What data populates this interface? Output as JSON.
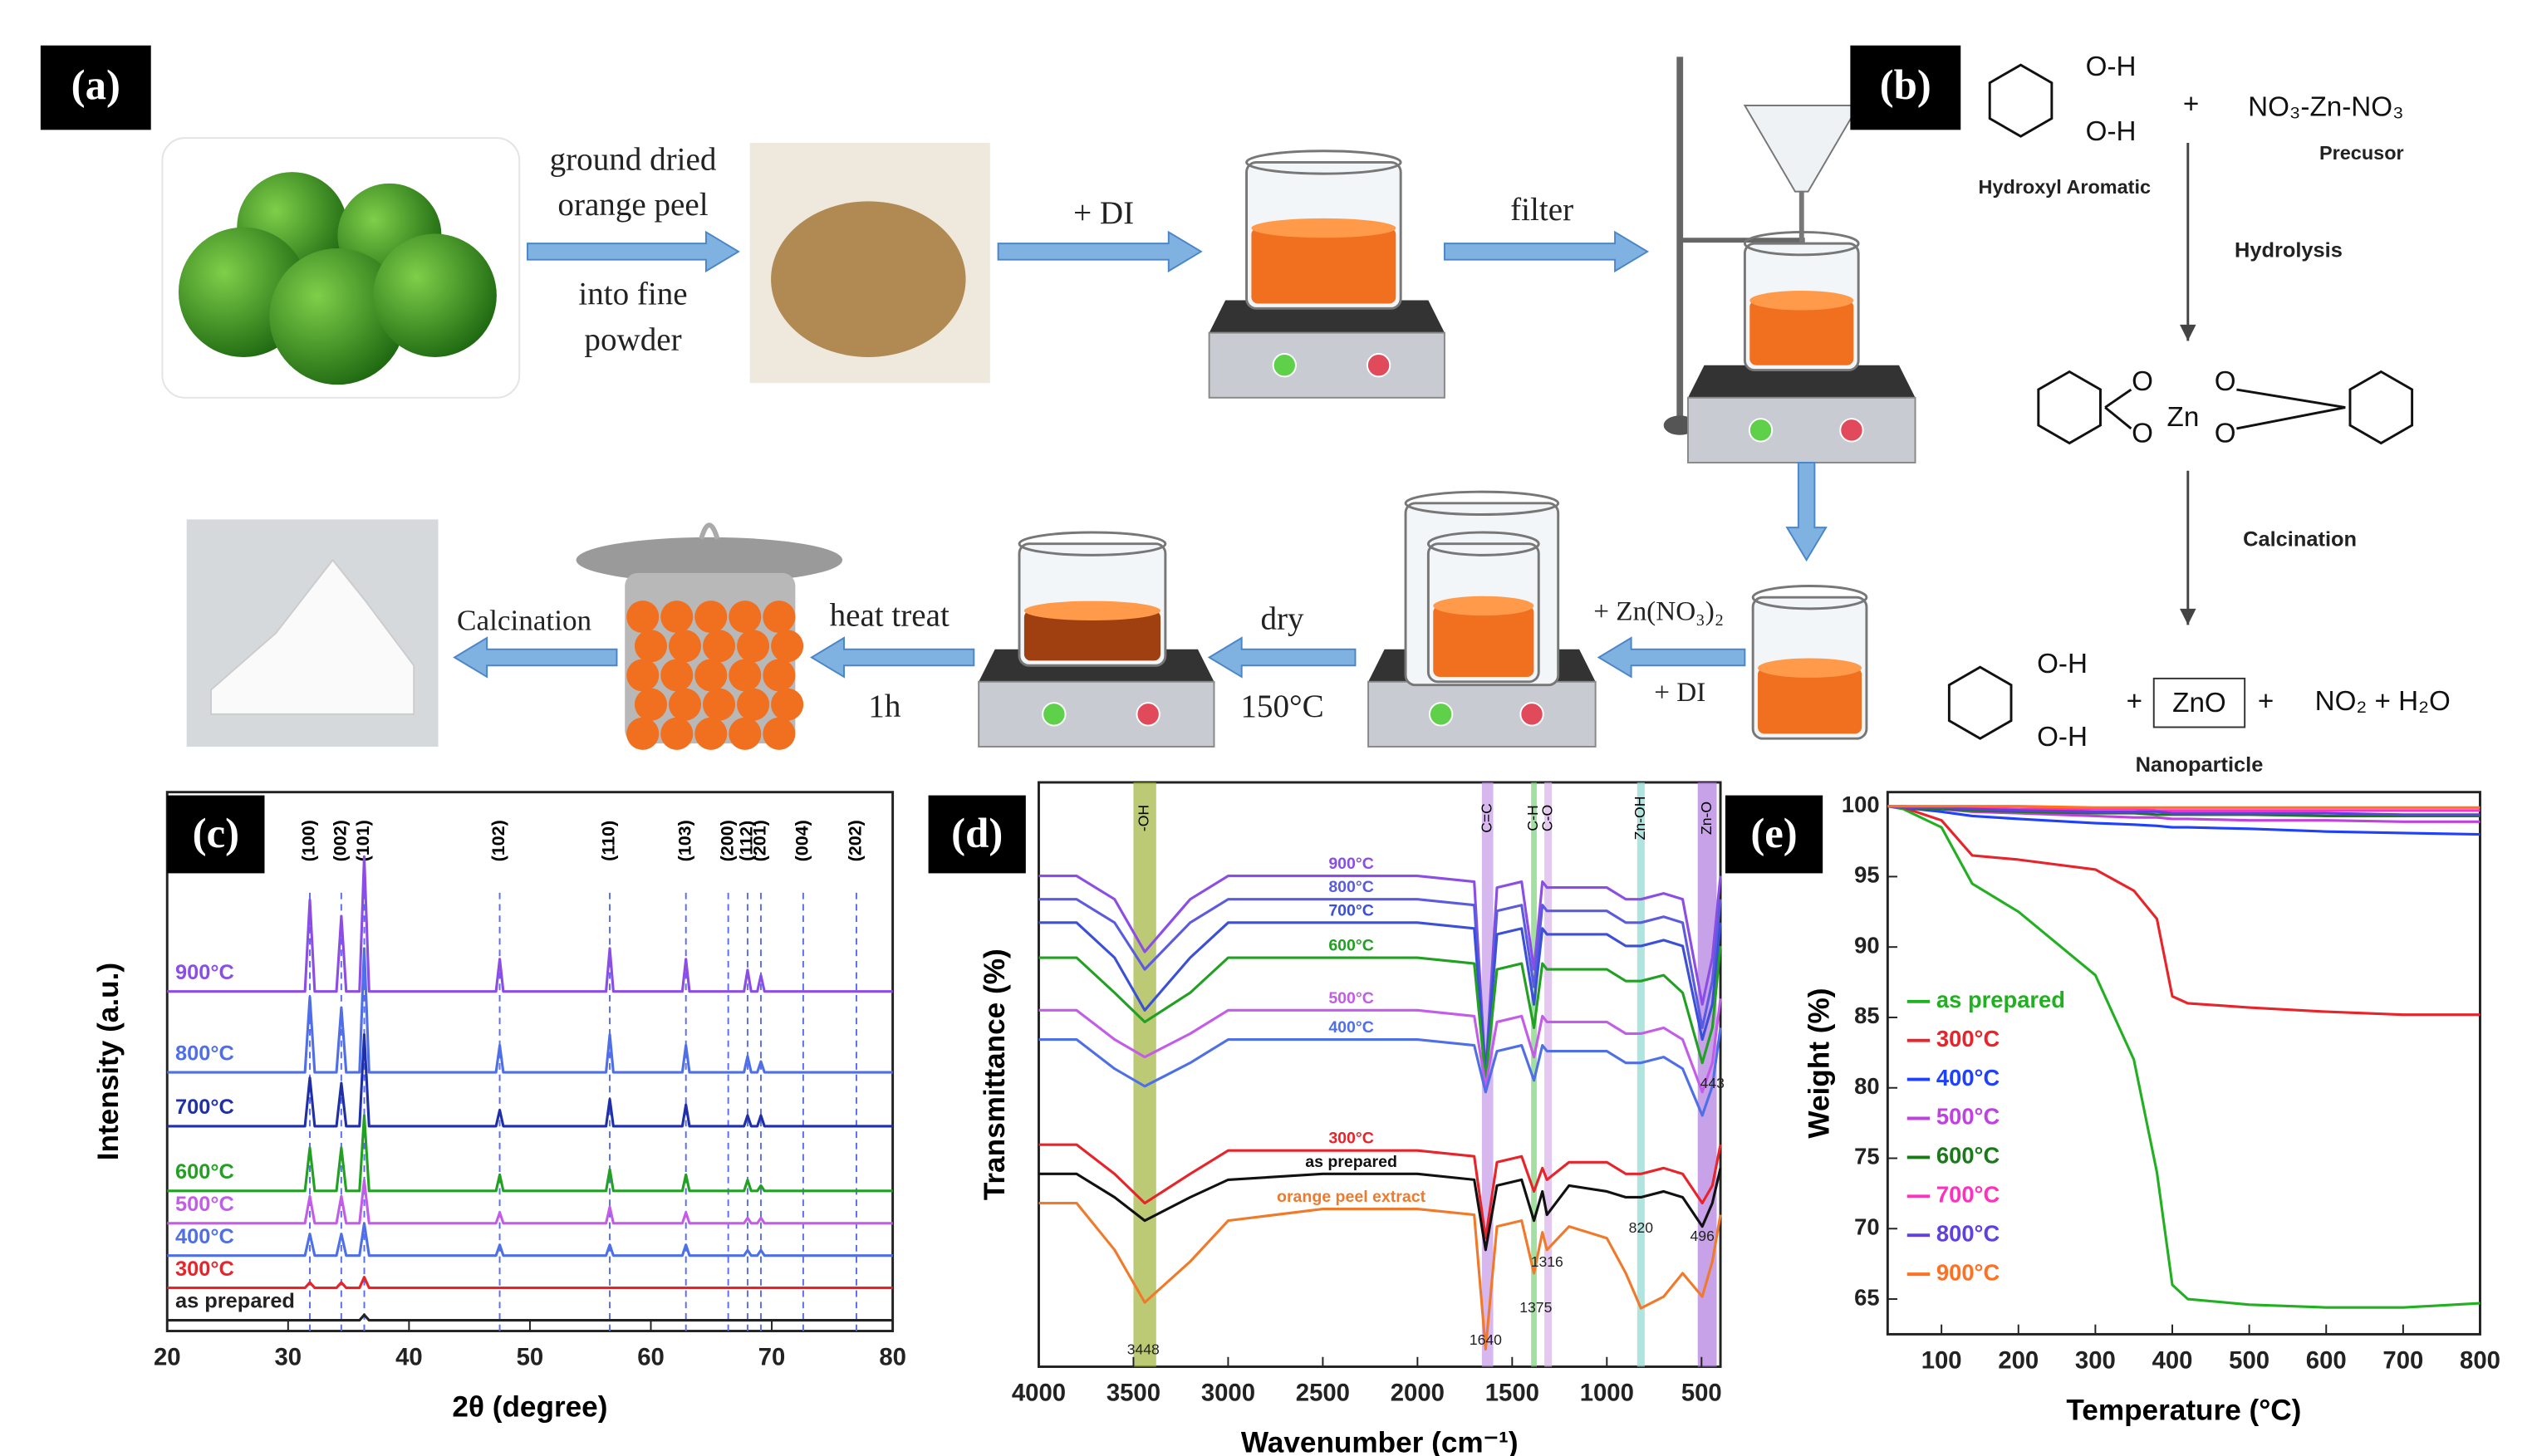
{
  "panel_a": {
    "label": "(a)",
    "step1": [
      "ground dried",
      "orange peel"
    ],
    "step1b": [
      "into fine",
      "powder"
    ],
    "step2": "+ DI",
    "step3": "filter",
    "step4a": "+ Zn(NO₃)₂",
    "step4b": "+ DI",
    "step5a": "dry",
    "step5b": "150°C",
    "step6a": "heat treat",
    "step6b": "1h",
    "step7": "Calcination"
  },
  "panel_b": {
    "label": "(b)",
    "oh1": "O-H",
    "oh2": "O-H",
    "plus1": "+",
    "precursor": "NO₃-Zn-NO₃",
    "reactant_label": "Hydroxyl Aromatic",
    "precursor_label": "Precusor",
    "step1": "Hydrolysis",
    "o": [
      "O",
      "O",
      "O",
      "O"
    ],
    "zn": "Zn",
    "step2": "Calcination",
    "oh3": "O-H",
    "oh4": "O-H",
    "plus2": "+",
    "product": "ZnO",
    "plus3": "+",
    "byproducts": "NO₂ + H₂O",
    "product_label": "Nanoparticle"
  },
  "chart_data": [
    {
      "type": "line",
      "label": "(c)",
      "xlabel": "2θ (degree)",
      "ylabel": "Intensity (a.u.)",
      "legend": "inline-left",
      "xlim": [
        20,
        80
      ],
      "ylim": [
        0,
        100
      ],
      "xticks": [
        20,
        30,
        40,
        50,
        60,
        70,
        80
      ],
      "x": [
        20,
        31.4,
        31.8,
        32.2,
        34.0,
        34.4,
        34.8,
        35.9,
        36.3,
        36.7,
        47.2,
        47.5,
        47.8,
        56.3,
        56.6,
        56.9,
        62.6,
        62.9,
        63.2,
        67.7,
        68.0,
        68.3,
        68.8,
        69.1,
        69.4,
        80
      ],
      "peaks": [
        {
          "text": "(100)",
          "x": 31.8
        },
        {
          "text": "(002)",
          "x": 34.4
        },
        {
          "text": "(101)",
          "x": 36.3
        },
        {
          "text": "(102)",
          "x": 47.5
        },
        {
          "text": "(110)",
          "x": 56.6
        },
        {
          "text": "(103)",
          "x": 62.9
        },
        {
          "text": "(200)",
          "x": 66.4
        },
        {
          "text": "(112)",
          "x": 68.0
        },
        {
          "text": "(201)",
          "x": 69.1
        },
        {
          "text": "(004)",
          "x": 72.6
        },
        {
          "text": "(202)",
          "x": 77.0
        }
      ],
      "series": [
        {
          "name": "900°C",
          "color": "#8c4de6",
          "values": [
            63,
            63,
            80,
            63,
            63,
            77,
            63,
            63,
            88,
            63,
            63,
            69,
            63,
            63,
            71,
            63,
            63,
            69,
            63,
            63,
            67,
            63,
            63,
            66,
            63,
            63
          ]
        },
        {
          "name": "800°C",
          "color": "#4f6fe8",
          "values": [
            48,
            48,
            62,
            48,
            48,
            60,
            48,
            48,
            71,
            48,
            48,
            53,
            48,
            48,
            55,
            48,
            48,
            53,
            48,
            48,
            51,
            48,
            48,
            50,
            48,
            48
          ]
        },
        {
          "name": "700°C",
          "color": "#1f2fa8",
          "values": [
            38,
            38,
            47,
            38,
            38,
            46,
            38,
            38,
            55,
            38,
            38,
            41,
            38,
            38,
            43,
            38,
            38,
            42,
            38,
            38,
            40,
            38,
            38,
            40,
            38,
            38
          ]
        },
        {
          "name": "600°C",
          "color": "#22a022",
          "values": [
            26,
            26,
            34,
            26,
            26,
            34,
            26,
            26,
            40,
            26,
            26,
            29,
            26,
            26,
            30,
            26,
            26,
            29,
            26,
            26,
            28,
            26,
            26,
            27,
            26,
            26
          ]
        },
        {
          "name": "500°C",
          "color": "#c35ce8",
          "values": [
            20,
            20,
            25,
            20,
            20,
            25,
            20,
            20,
            28,
            20,
            20,
            22,
            20,
            20,
            23,
            20,
            20,
            22,
            20,
            20,
            21,
            20,
            20,
            21,
            20,
            20
          ]
        },
        {
          "name": "400°C",
          "color": "#4f6fe8",
          "values": [
            14,
            14,
            18,
            14,
            14,
            18,
            14,
            14,
            20,
            14,
            14,
            16,
            14,
            14,
            16,
            14,
            14,
            16,
            14,
            14,
            15,
            14,
            14,
            15,
            14,
            14
          ]
        },
        {
          "name": "300°C",
          "color": "#e8232a",
          "values": [
            8,
            8,
            9,
            8,
            8,
            9,
            8,
            8,
            10,
            8,
            8,
            8,
            8,
            8,
            8,
            8,
            8,
            8,
            8,
            8,
            8,
            8,
            8,
            8,
            8,
            8
          ]
        },
        {
          "name": "as prepared",
          "color": "#222222",
          "values": [
            2,
            2,
            2,
            2,
            2,
            2,
            2,
            2,
            3,
            2,
            2,
            2,
            2,
            2,
            2,
            2,
            2,
            2,
            2,
            2,
            2,
            2,
            2,
            2,
            2,
            2
          ]
        }
      ]
    },
    {
      "type": "line",
      "label": "(d)",
      "xlabel": "Wavenumber (cm⁻¹)",
      "ylabel": "Transmittance (%)",
      "legend": "inline",
      "xlim": [
        4000,
        400
      ],
      "ylim": [
        0,
        100
      ],
      "xticks": [
        4000,
        3500,
        3000,
        2500,
        2000,
        1500,
        1000,
        500
      ],
      "x": [
        4000,
        3800,
        3600,
        3440,
        3200,
        3000,
        2500,
        2000,
        1700,
        1640,
        1580,
        1450,
        1385,
        1340,
        1316,
        1200,
        1000,
        900,
        820,
        700,
        600,
        496,
        443,
        400
      ],
      "bands": [
        {
          "label": "-OH",
          "from": 3500,
          "to": 3380,
          "color": "#9fb33a"
        },
        {
          "label": "C=C",
          "from": 1660,
          "to": 1600,
          "color": "#c49ae8"
        },
        {
          "label": "C-H",
          "from": 1400,
          "to": 1370,
          "color": "#7cd27c"
        },
        {
          "label": "C-O",
          "from": 1330,
          "to": 1290,
          "color": "#d8b0e8"
        },
        {
          "label": "Zn-OH",
          "from": 840,
          "to": 800,
          "color": "#8ed8d0"
        },
        {
          "label": "Zn-O",
          "from": 520,
          "to": 420,
          "color": "#b07ae0"
        }
      ],
      "annotations": [
        {
          "text": "3448",
          "x": 3448
        },
        {
          "text": "1640",
          "x": 1640
        },
        {
          "text": "1375",
          "x": 1375
        },
        {
          "text": "1316",
          "x": 1316
        },
        {
          "text": "820",
          "x": 820
        },
        {
          "text": "496",
          "x": 496
        },
        {
          "text": "443",
          "x": 443
        }
      ],
      "series": [
        {
          "name": "900°C",
          "color": "#8c4de6",
          "values": [
            84,
            84,
            80,
            71,
            80,
            84,
            84,
            84,
            83,
            50,
            82,
            83,
            68,
            83,
            82,
            82,
            82,
            80,
            80,
            81,
            80,
            62,
            70,
            84
          ]
        },
        {
          "name": "800°C",
          "color": "#5b5be0",
          "values": [
            80,
            80,
            76,
            68,
            76,
            80,
            80,
            80,
            79,
            50,
            78,
            79,
            65,
            79,
            78,
            78,
            78,
            76,
            76,
            77,
            76,
            58,
            66,
            80
          ]
        },
        {
          "name": "700°C",
          "color": "#3b4fd8",
          "values": [
            76,
            76,
            70,
            61,
            70,
            76,
            76,
            76,
            75,
            50,
            74,
            75,
            62,
            75,
            74,
            74,
            74,
            72,
            72,
            73,
            72,
            56,
            62,
            76
          ]
        },
        {
          "name": "600°C",
          "color": "#22a022",
          "values": [
            70,
            70,
            64,
            59,
            64,
            70,
            70,
            70,
            69,
            49,
            68,
            69,
            58,
            69,
            68,
            68,
            68,
            66,
            66,
            67,
            64,
            52,
            58,
            72
          ]
        },
        {
          "name": "500°C",
          "color": "#c35ce8",
          "values": [
            61,
            61,
            56,
            53,
            57,
            61,
            61,
            61,
            60,
            48,
            59,
            60,
            53,
            60,
            59,
            59,
            59,
            57,
            57,
            58,
            56,
            47,
            52,
            63
          ]
        },
        {
          "name": "400°C",
          "color": "#4f6fe8",
          "values": [
            56,
            56,
            51,
            48,
            52,
            56,
            56,
            56,
            55,
            47,
            54,
            55,
            49,
            55,
            54,
            54,
            54,
            52,
            52,
            53,
            51,
            43,
            48,
            58
          ]
        },
        {
          "name": "300°C",
          "color": "#e8232a",
          "values": [
            38,
            38,
            33,
            28,
            33,
            37,
            37,
            37,
            36,
            22,
            35,
            36,
            30,
            34,
            32,
            35,
            35,
            33,
            33,
            34,
            33,
            28,
            31,
            38
          ]
        },
        {
          "name": "as prepared",
          "color": "#111111",
          "values": [
            33,
            33,
            29,
            25,
            29,
            32,
            33,
            33,
            32,
            20,
            31,
            32,
            25,
            30,
            26,
            31,
            30,
            29,
            29,
            30,
            29,
            24,
            28,
            34
          ]
        },
        {
          "name": "orange peel extract",
          "color": "#f07a2a",
          "values": [
            28,
            28,
            20,
            11,
            18,
            25,
            27,
            27,
            26,
            3,
            24,
            25,
            16,
            23,
            20,
            24,
            22,
            16,
            10,
            12,
            16,
            12,
            18,
            26
          ]
        }
      ]
    },
    {
      "type": "line",
      "label": "(e)",
      "xlabel": "Temperature (°C)",
      "ylabel": "Weight (%)",
      "legend": "center left",
      "xlim": [
        30,
        800
      ],
      "ylim": [
        62.5,
        101
      ],
      "xticks": [
        100,
        200,
        300,
        400,
        500,
        600,
        700,
        800
      ],
      "yticks": [
        65,
        70,
        75,
        80,
        85,
        90,
        95,
        100
      ],
      "x": [
        30,
        50,
        100,
        140,
        200,
        300,
        350,
        380,
        400,
        420,
        500,
        600,
        700,
        800
      ],
      "series": [
        {
          "name": "as prepared",
          "color": "#22b022",
          "values": [
            100,
            99.8,
            98.5,
            94.5,
            92.5,
            88,
            82,
            74,
            66,
            65,
            64.6,
            64.4,
            64.4,
            64.7
          ]
        },
        {
          "name": "300°C",
          "color": "#e8232a",
          "values": [
            100,
            99.9,
            99,
            96.5,
            96.2,
            95.5,
            94,
            92,
            86.5,
            86,
            85.7,
            85.4,
            85.2,
            85.2
          ]
        },
        {
          "name": "400°C",
          "color": "#2040ff",
          "values": [
            100,
            99.9,
            99.6,
            99.3,
            99.1,
            98.8,
            98.7,
            98.6,
            98.5,
            98.5,
            98.4,
            98.2,
            98.1,
            98
          ]
        },
        {
          "name": "500°C",
          "color": "#c040e0",
          "values": [
            100,
            99.9,
            99.8,
            99.6,
            99.5,
            99.3,
            99.2,
            99.2,
            99.1,
            99.1,
            99,
            99,
            98.9,
            98.9
          ]
        },
        {
          "name": "600°C",
          "color": "#1a7a1a",
          "values": [
            100,
            99.9,
            99.8,
            99.7,
            99.6,
            99.5,
            99.5,
            99.4,
            99.4,
            99.4,
            99.4,
            99.3,
            99.3,
            99.3
          ]
        },
        {
          "name": "700°C",
          "color": "#ff30c0",
          "values": [
            100,
            100,
            99.9,
            99.9,
            99.8,
            99.8,
            99.8,
            99.7,
            99.7,
            99.7,
            99.7,
            99.7,
            99.7,
            99.7
          ]
        },
        {
          "name": "800°C",
          "color": "#6040e0",
          "values": [
            100,
            99.9,
            99.9,
            99.8,
            99.7,
            99.6,
            99.6,
            99.6,
            99.5,
            99.5,
            99.5,
            99.5,
            99.4,
            99.4
          ]
        },
        {
          "name": "900°C",
          "color": "#ff7020",
          "values": [
            100,
            100,
            100,
            100,
            100,
            99.9,
            99.9,
            99.9,
            99.9,
            99.9,
            99.9,
            99.9,
            99.9,
            99.9
          ]
        }
      ]
    }
  ]
}
